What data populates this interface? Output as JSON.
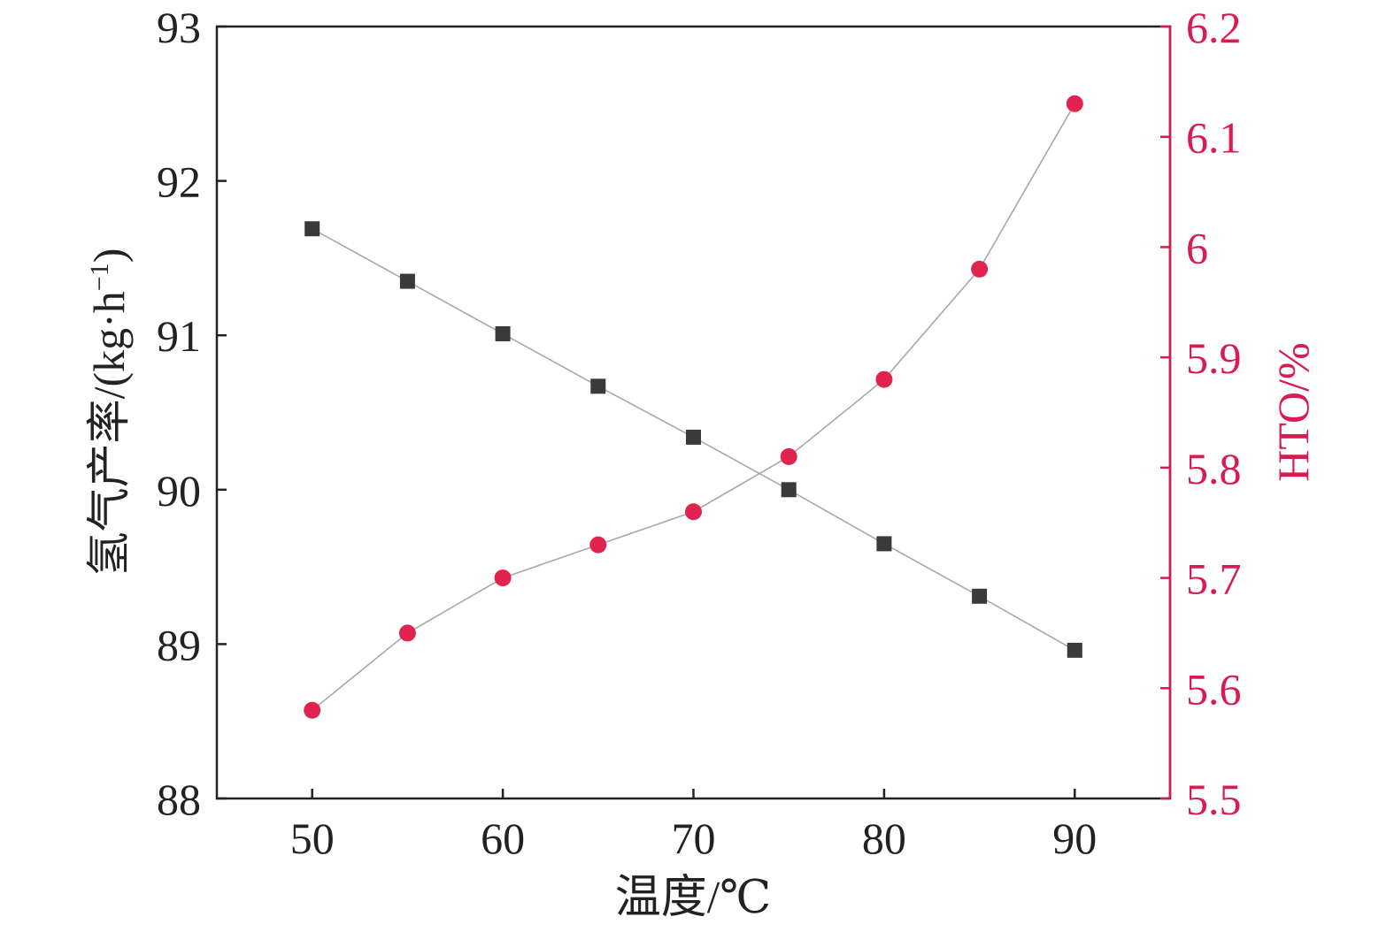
{
  "chart_data": {
    "type": "line",
    "xlabel": "温度/℃",
    "ylabel_left": "氢气产率/(kg·h",
    "ylabel_left_sup": "−1",
    "ylabel_left_tail": ")",
    "ylabel_right": "HTO/%",
    "xlim": [
      45,
      95
    ],
    "ylim_left": [
      88,
      93
    ],
    "ylim_right": [
      5.5,
      6.2
    ],
    "x_ticks": [
      50,
      60,
      70,
      80,
      90
    ],
    "x_tick_labels": [
      "50",
      "60",
      "70",
      "80",
      "90"
    ],
    "y_left_ticks": [
      88,
      89,
      90,
      91,
      92,
      93
    ],
    "y_left_tick_labels": [
      "88",
      "89",
      "90",
      "91",
      "92",
      "93"
    ],
    "y_right_ticks": [
      5.5,
      5.6,
      5.7,
      5.8,
      5.9,
      6.0,
      6.1,
      6.2
    ],
    "y_right_tick_labels": [
      "5.5",
      "5.6",
      "5.7",
      "5.8",
      "5.9",
      "6",
      "6.1",
      "6.2"
    ],
    "x": [
      50,
      55,
      60,
      65,
      70,
      75,
      80,
      85,
      90
    ],
    "series": [
      {
        "axis": "left",
        "marker": "square",
        "color": "#3a3a3a",
        "values": [
          91.69,
          91.35,
          91.01,
          90.67,
          90.34,
          90.0,
          89.65,
          89.31,
          88.96
        ]
      },
      {
        "axis": "right",
        "marker": "circle",
        "color": "#e0234f",
        "values": [
          5.58,
          5.65,
          5.7,
          5.73,
          5.76,
          5.81,
          5.88,
          5.98,
          6.13
        ]
      }
    ],
    "line_color": "#a8a8a8",
    "left_axis_color": "#222222",
    "right_axis_color": "#d81b50",
    "grid": false
  }
}
